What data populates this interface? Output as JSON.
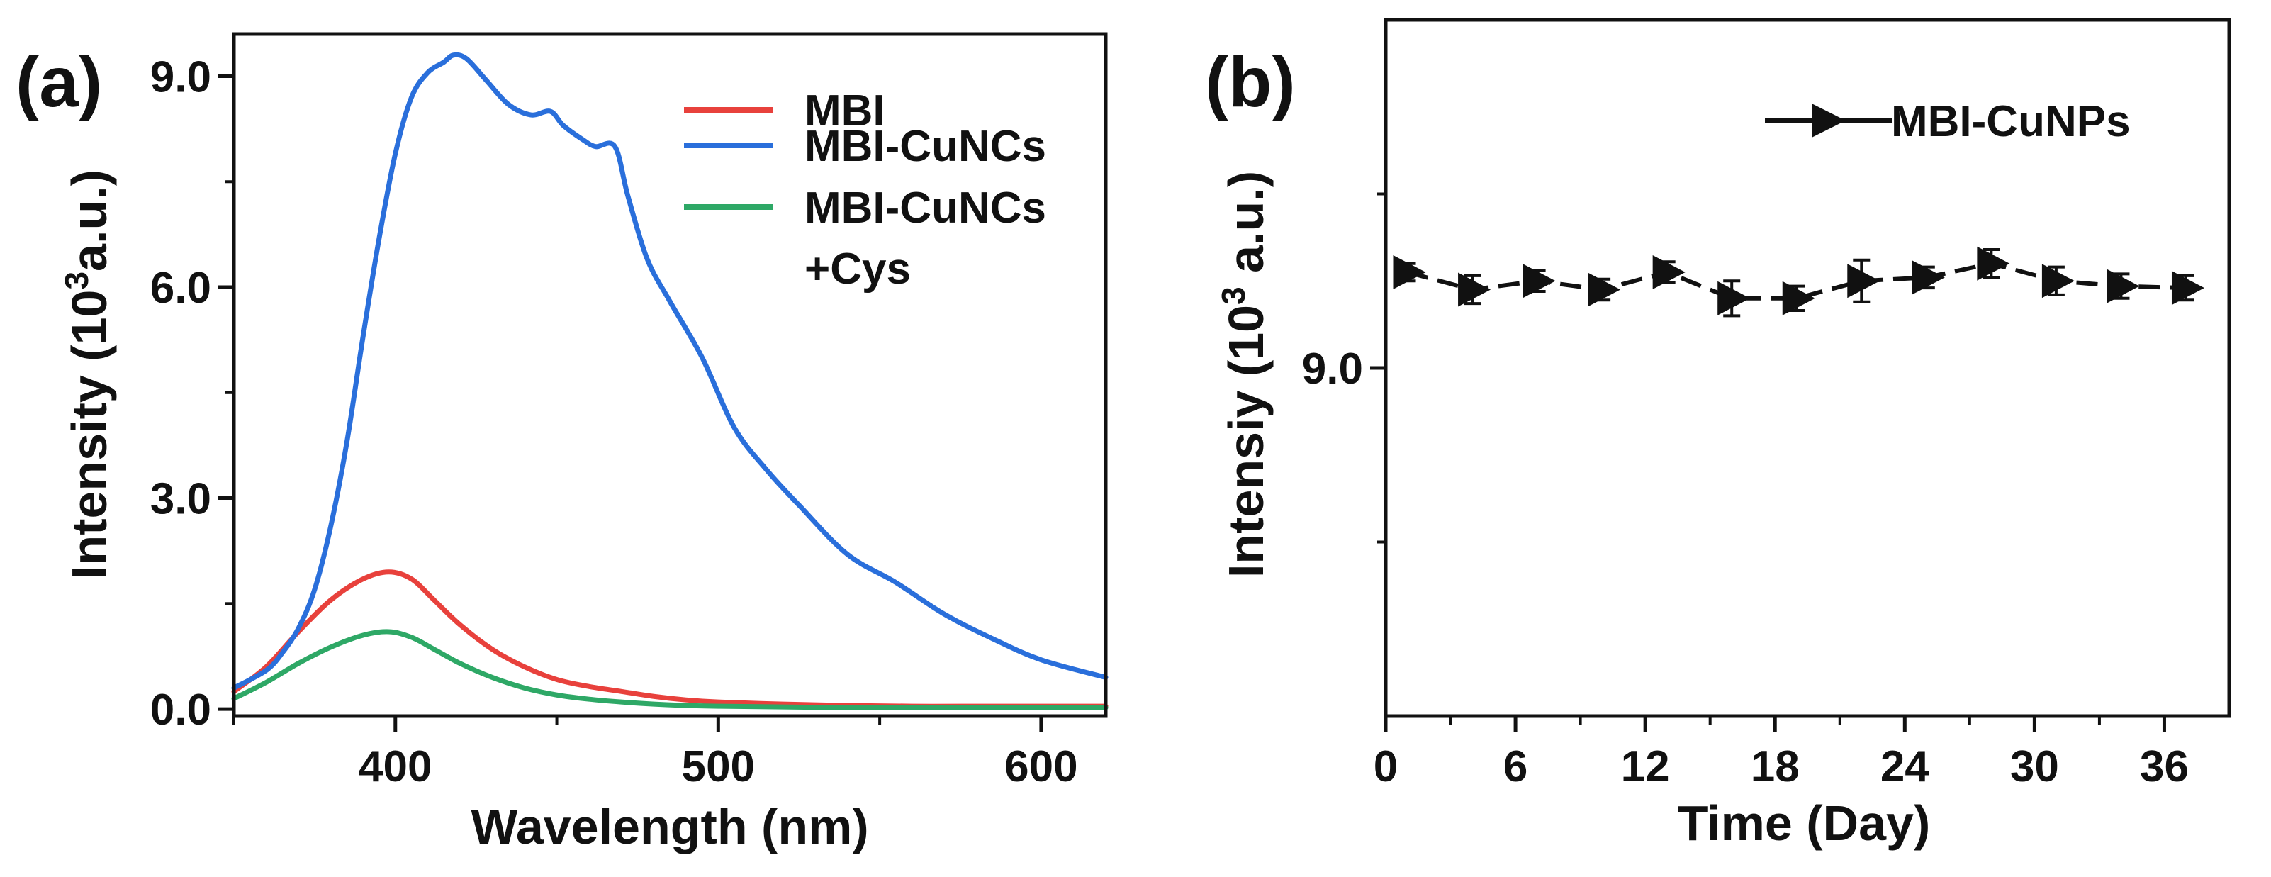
{
  "chart_data": [
    {
      "panel_label": "(a)",
      "type": "line",
      "xlabel": "Wavelength (nm)",
      "ylabel_main": "Intensity (10",
      "ylabel_sup": "3",
      "ylabel_tail": "a.u.)",
      "xlim": [
        350,
        620
      ],
      "ylim": [
        -0.1,
        9.6
      ],
      "xticks": [
        400,
        500,
        600
      ],
      "yticks": [
        0.0,
        3.0,
        6.0,
        9.0
      ],
      "xtick_labels": [
        "400",
        "500",
        "600"
      ],
      "ytick_labels": [
        "0.0",
        "3.0",
        "6.0",
        "9.0"
      ],
      "legend_placement": "top-right",
      "series": [
        {
          "name": "MBI",
          "color": "#e8413c",
          "x": [
            350,
            360,
            370,
            380,
            390,
            398,
            405,
            412,
            420,
            430,
            440,
            450,
            460,
            470,
            480,
            490,
            500,
            520,
            540,
            560,
            580,
            600,
            620
          ],
          "y": [
            0.25,
            0.6,
            1.1,
            1.55,
            1.85,
            1.95,
            1.85,
            1.55,
            1.2,
            0.85,
            0.6,
            0.42,
            0.32,
            0.25,
            0.18,
            0.13,
            0.1,
            0.07,
            0.05,
            0.04,
            0.04,
            0.04,
            0.04
          ]
        },
        {
          "name": "MBI-CuNCs",
          "color": "#2a6fdb",
          "x": [
            350,
            360,
            365,
            370,
            375,
            380,
            385,
            390,
            395,
            400,
            405,
            410,
            415,
            418,
            422,
            428,
            435,
            442,
            448,
            452,
            458,
            462,
            468,
            472,
            478,
            485,
            495,
            505,
            515,
            525,
            540,
            555,
            570,
            585,
            600,
            620
          ],
          "y": [
            0.3,
            0.55,
            0.8,
            1.15,
            1.7,
            2.6,
            3.8,
            5.3,
            6.7,
            7.9,
            8.7,
            9.05,
            9.2,
            9.3,
            9.25,
            8.95,
            8.6,
            8.45,
            8.5,
            8.3,
            8.1,
            8.0,
            8.0,
            7.3,
            6.4,
            5.8,
            5.0,
            4.0,
            3.4,
            2.9,
            2.2,
            1.8,
            1.35,
            1.0,
            0.7,
            0.45
          ]
        },
        {
          "name": "MBI-CuNCs +Cys",
          "legend_lines": [
            "MBI-CuNCs",
            "+Cys"
          ],
          "color": "#2ea866",
          "x": [
            350,
            360,
            370,
            380,
            390,
            398,
            405,
            412,
            420,
            430,
            440,
            450,
            460,
            470,
            480,
            490,
            500,
            520,
            540,
            560,
            580,
            600,
            620
          ],
          "y": [
            0.15,
            0.38,
            0.65,
            0.88,
            1.05,
            1.1,
            1.02,
            0.85,
            0.65,
            0.45,
            0.3,
            0.2,
            0.14,
            0.1,
            0.07,
            0.05,
            0.04,
            0.03,
            0.02,
            0.02,
            0.02,
            0.02,
            0.02
          ]
        }
      ]
    },
    {
      "panel_label": "(b)",
      "type": "line",
      "xlabel": "Time (Day)",
      "ylabel_main": "Intensiy (10",
      "ylabel_sup": "3",
      "ylabel_tail": " a.u.)",
      "xlim": [
        0,
        39
      ],
      "ylim": [
        7.0,
        11.0
      ],
      "xticks": [
        0,
        6,
        12,
        18,
        24,
        30,
        36
      ],
      "xtick_labels": [
        "0",
        "6",
        "12",
        "18",
        "24",
        "30",
        "36"
      ],
      "yticks": [
        9.0
      ],
      "ytick_labels": [
        "9.0"
      ],
      "legend_placement": "top-right",
      "series": [
        {
          "name": "MBI-CuNPs",
          "color": "#111111",
          "line_style": "dashed",
          "marker": "right-triangle",
          "x": [
            1,
            4,
            7,
            10,
            13,
            16,
            19,
            22,
            25,
            28,
            31,
            34,
            37
          ],
          "y": [
            9.55,
            9.45,
            9.5,
            9.45,
            9.55,
            9.4,
            9.4,
            9.5,
            9.52,
            9.6,
            9.5,
            9.47,
            9.46
          ],
          "error": [
            0.05,
            0.08,
            0.06,
            0.06,
            0.06,
            0.1,
            0.07,
            0.12,
            0.06,
            0.08,
            0.08,
            0.07,
            0.07
          ]
        }
      ]
    }
  ]
}
